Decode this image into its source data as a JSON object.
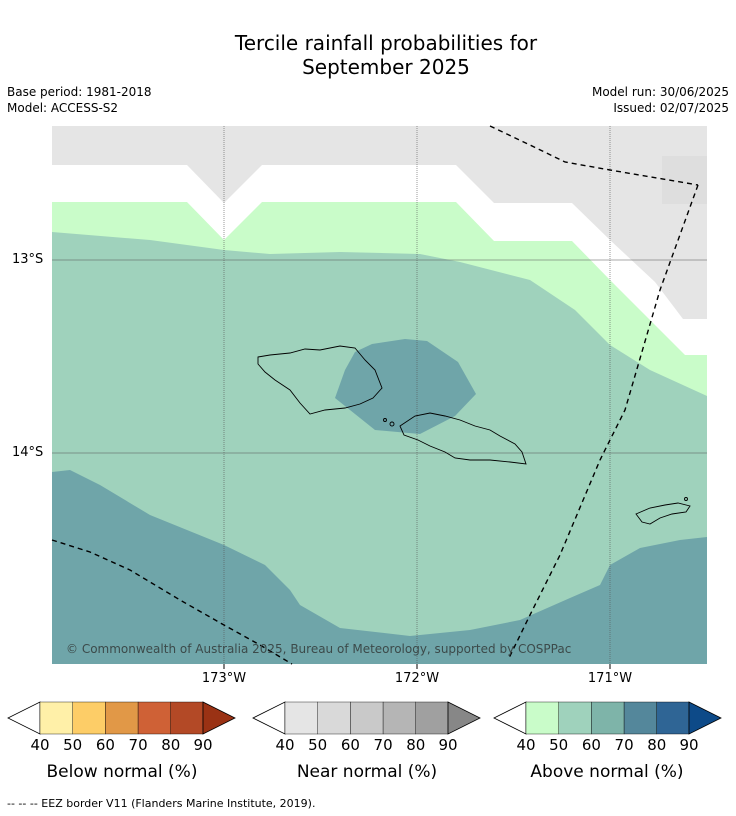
{
  "title_line1": "Tercile rainfall probabilities for",
  "title_line2": "September 2025",
  "meta": {
    "base_period": "Base period: 1981-2018",
    "model": "Model: ACCESS-S2",
    "model_run": "Model run: 30/06/2025",
    "issued": "Issued: 02/07/2025"
  },
  "map": {
    "lat_labels": [
      "13°S",
      "14°S"
    ],
    "lon_labels": [
      "173°W",
      "172°W",
      "171°W"
    ],
    "copyright": "© Commonwealth of Australia 2025, Bureau of Meteorology, supported by COSPPac",
    "colors": {
      "near_normal_region": "#e5e5e5",
      "above_40_50": "#c9fcc9",
      "above_50_60": "#9fd2bc",
      "above_60_70": "#6fa5a9",
      "land_outline": "#000000"
    }
  },
  "legends": [
    {
      "title": "Below normal (%)",
      "ticks": [
        "40",
        "50",
        "60",
        "70",
        "80",
        "90"
      ],
      "colors": [
        "#fff0a8",
        "#fdcd67",
        "#e19847",
        "#cf6136",
        "#b34926",
        "#9a3214"
      ]
    },
    {
      "title": "Near normal (%)",
      "ticks": [
        "40",
        "50",
        "60",
        "70",
        "80",
        "90"
      ],
      "colors": [
        "#e5e5e5",
        "#d9d9d9",
        "#c9c9c9",
        "#b5b5b5",
        "#a0a0a0",
        "#878787"
      ]
    },
    {
      "title": "Above normal (%)",
      "ticks": [
        "40",
        "50",
        "60",
        "70",
        "80",
        "90"
      ],
      "colors": [
        "#c9fcc9",
        "#9fd2bc",
        "#7eb4a9",
        "#54879b",
        "#2f6595",
        "#0d4a88"
      ]
    }
  ],
  "footnote": "--  --  -- EEZ border V11 (Flanders Marine Institute, 2019)."
}
